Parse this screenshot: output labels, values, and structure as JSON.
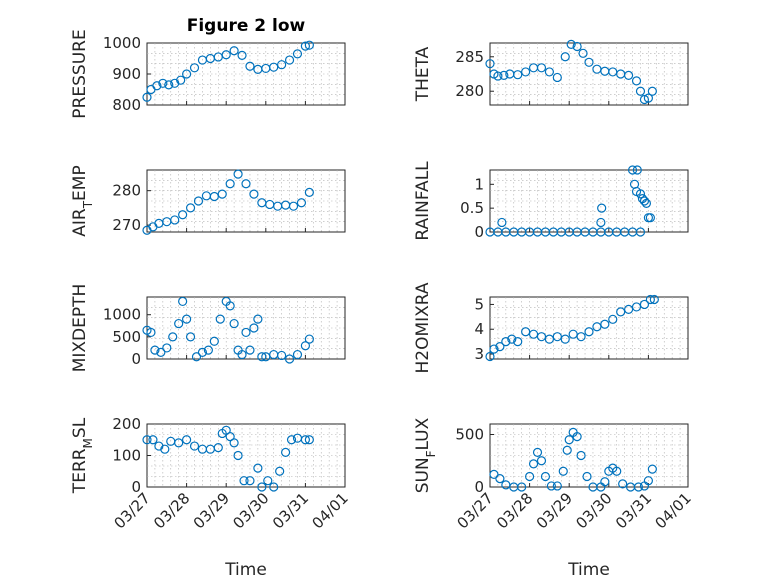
{
  "colors": {
    "marker": "#0072bd",
    "axis": "#262626",
    "grid": "#b0b0b0"
  },
  "chart_data": [
    {
      "type": "scatter",
      "ylabel": "PRESSURE",
      "title": "Figure 2 low",
      "ylim": [
        800,
        1000
      ],
      "yticks": [
        "800",
        "900",
        "1000"
      ],
      "ytick_values": [
        800,
        900,
        1000
      ],
      "xlim": [
        0,
        5
      ],
      "grid": true,
      "series": [
        {
          "x": [
            0.0,
            0.1,
            0.25,
            0.4,
            0.55,
            0.7,
            0.85,
            1.0,
            1.2,
            1.4,
            1.6,
            1.8,
            2.0,
            2.2,
            2.4,
            2.6,
            2.8,
            3.0,
            3.2,
            3.4,
            3.6,
            3.8,
            4.0,
            4.1
          ],
          "y": [
            825,
            850,
            862,
            870,
            865,
            870,
            880,
            900,
            920,
            945,
            950,
            955,
            962,
            975,
            960,
            925,
            915,
            918,
            922,
            930,
            945,
            965,
            990,
            993
          ]
        }
      ]
    },
    {
      "type": "scatter",
      "ylabel": "THETA",
      "title": "",
      "ylim": [
        278,
        287
      ],
      "yticks": [
        "280",
        "285"
      ],
      "ytick_values": [
        280,
        285
      ],
      "xlim": [
        0,
        5
      ],
      "grid": true,
      "series": [
        {
          "x": [
            0.0,
            0.1,
            0.2,
            0.35,
            0.5,
            0.7,
            0.9,
            1.1,
            1.3,
            1.5,
            1.7,
            1.9,
            2.05,
            2.2,
            2.35,
            2.5,
            2.7,
            2.9,
            3.1,
            3.3,
            3.5,
            3.7,
            3.8,
            3.9,
            4.0,
            4.1
          ],
          "y": [
            284,
            282.5,
            282.2,
            282.3,
            282.5,
            282.4,
            282.8,
            283.4,
            283.4,
            282.8,
            282.0,
            285.0,
            286.8,
            286.5,
            285.5,
            284.2,
            283.2,
            282.9,
            282.8,
            282.5,
            282.3,
            281.5,
            280.0,
            278.8,
            279.0,
            280.0
          ]
        }
      ]
    },
    {
      "type": "scatter",
      "ylabel": "AIR_TEMP",
      "ylabel_sub": "T",
      "title": "",
      "ylim": [
        268,
        286
      ],
      "yticks": [
        "270",
        "280"
      ],
      "ytick_values": [
        270,
        280
      ],
      "xlim": [
        0,
        5
      ],
      "grid": true,
      "series": [
        {
          "x": [
            0.0,
            0.15,
            0.3,
            0.5,
            0.7,
            0.9,
            1.1,
            1.3,
            1.5,
            1.7,
            1.9,
            2.1,
            2.3,
            2.5,
            2.7,
            2.9,
            3.1,
            3.3,
            3.5,
            3.7,
            3.9,
            4.1
          ],
          "y": [
            268.5,
            269.5,
            270.5,
            271,
            271.5,
            273,
            275,
            277,
            278.5,
            278.3,
            279,
            282,
            284.8,
            282,
            279,
            276.5,
            276,
            275.5,
            275.8,
            275.5,
            276.5,
            279.5
          ]
        }
      ]
    },
    {
      "type": "scatter",
      "ylabel": "RAINFALL",
      "title": "",
      "ylim": [
        0,
        1.3
      ],
      "yticks": [
        "0",
        "0.5",
        "1"
      ],
      "ytick_values": [
        0,
        0.5,
        1
      ],
      "xlim": [
        0,
        5
      ],
      "grid": true,
      "series": [
        {
          "x": [
            0.0,
            0.2,
            0.4,
            0.6,
            0.8,
            1.0,
            1.2,
            1.4,
            1.6,
            1.8,
            2.0,
            2.2,
            2.4,
            2.6,
            2.8,
            3.0,
            3.2,
            3.4,
            3.6,
            3.8,
            0.3,
            2.8,
            2.82,
            3.6,
            3.65,
            3.7,
            3.72,
            3.8,
            3.85,
            3.9,
            3.95,
            4.0,
            4.05
          ],
          "y": [
            0,
            0,
            0,
            0,
            0,
            0,
            0,
            0,
            0,
            0,
            0,
            0,
            0,
            0,
            0,
            0,
            0,
            0,
            0,
            0,
            0.2,
            0.2,
            0.5,
            1.3,
            1.0,
            0.85,
            1.3,
            0.8,
            0.7,
            0.65,
            0.6,
            0.3,
            0.3
          ]
        }
      ]
    },
    {
      "type": "scatter",
      "ylabel": "MIXDEPTH",
      "title": "",
      "ylim": [
        0,
        1400
      ],
      "yticks": [
        "0",
        "500",
        "1000"
      ],
      "ytick_values": [
        0,
        500,
        1000
      ],
      "xlim": [
        0,
        5
      ],
      "grid": true,
      "series": [
        {
          "x": [
            0.0,
            0.1,
            0.2,
            0.35,
            0.5,
            0.65,
            0.8,
            0.9,
            1.0,
            1.1,
            1.25,
            1.4,
            1.55,
            1.7,
            1.85,
            2.0,
            2.1,
            2.2,
            2.3,
            2.4,
            2.5,
            2.6,
            2.7,
            2.8,
            2.9,
            3.0,
            3.2,
            3.4,
            3.6,
            3.8,
            4.0,
            4.1
          ],
          "y": [
            650,
            600,
            200,
            150,
            250,
            500,
            800,
            1300,
            900,
            500,
            50,
            150,
            200,
            400,
            900,
            1300,
            1200,
            800,
            200,
            100,
            600,
            200,
            700,
            900,
            50,
            50,
            100,
            80,
            0,
            100,
            300,
            450
          ]
        }
      ]
    },
    {
      "type": "scatter",
      "ylabel": "H2OMIXRA",
      "title": "",
      "ylim": [
        2.8,
        5.3
      ],
      "yticks": [
        "3",
        "4",
        "5"
      ],
      "ytick_values": [
        3,
        4,
        5
      ],
      "xlim": [
        0,
        5
      ],
      "grid": true,
      "series": [
        {
          "x": [
            0.0,
            0.1,
            0.25,
            0.4,
            0.55,
            0.7,
            0.9,
            1.1,
            1.3,
            1.5,
            1.7,
            1.9,
            2.1,
            2.3,
            2.5,
            2.7,
            2.9,
            3.1,
            3.3,
            3.5,
            3.7,
            3.9,
            4.05,
            4.15
          ],
          "y": [
            2.9,
            3.2,
            3.3,
            3.5,
            3.6,
            3.5,
            3.9,
            3.8,
            3.7,
            3.6,
            3.7,
            3.6,
            3.8,
            3.7,
            3.9,
            4.1,
            4.2,
            4.4,
            4.7,
            4.8,
            4.9,
            5.0,
            5.2,
            5.2
          ]
        }
      ]
    },
    {
      "type": "scatter",
      "ylabel": "TERR_MSL",
      "ylabel_sub": "M",
      "title": "",
      "ylim": [
        0,
        200
      ],
      "yticks": [
        "0",
        "100",
        "200"
      ],
      "ytick_values": [
        0,
        100,
        200
      ],
      "xlim": [
        0,
        5
      ],
      "grid": true,
      "series": [
        {
          "x": [
            0.0,
            0.15,
            0.3,
            0.45,
            0.6,
            0.8,
            1.0,
            1.2,
            1.4,
            1.6,
            1.8,
            1.9,
            2.0,
            2.1,
            2.2,
            2.3,
            2.45,
            2.6,
            2.8,
            2.9,
            3.05,
            3.2,
            3.35,
            3.5,
            3.65,
            3.8,
            4.0,
            4.1
          ],
          "y": [
            150,
            150,
            130,
            120,
            145,
            140,
            150,
            130,
            120,
            120,
            125,
            170,
            180,
            160,
            140,
            100,
            20,
            20,
            60,
            0,
            20,
            0,
            50,
            110,
            150,
            155,
            150,
            150
          ]
        }
      ]
    },
    {
      "type": "scatter",
      "ylabel": "SUN_FLUX",
      "ylabel_sub": "F",
      "title": "",
      "ylim": [
        0,
        600
      ],
      "yticks": [
        "0",
        "500"
      ],
      "ytick_values": [
        0,
        500
      ],
      "xlim": [
        0,
        5
      ],
      "xticks": [
        "03/27",
        "03/28",
        "03/29",
        "03/30",
        "03/31",
        "04/01"
      ],
      "xtick_values": [
        0,
        1,
        2,
        3,
        4,
        5
      ],
      "xlabel": "Time",
      "grid": true,
      "series": [
        {
          "x": [
            0.1,
            0.25,
            0.4,
            0.6,
            0.8,
            1.0,
            1.1,
            1.2,
            1.3,
            1.4,
            1.55,
            1.7,
            1.85,
            1.95,
            2.0,
            2.1,
            2.2,
            2.3,
            2.45,
            2.6,
            2.8,
            2.9,
            3.0,
            3.1,
            3.2,
            3.35,
            3.55,
            3.75,
            3.9,
            4.0,
            4.1
          ],
          "y": [
            120,
            80,
            20,
            0,
            0,
            100,
            220,
            330,
            250,
            100,
            10,
            10,
            150,
            350,
            450,
            520,
            480,
            300,
            100,
            0,
            0,
            50,
            150,
            180,
            150,
            30,
            0,
            0,
            10,
            60,
            170
          ]
        }
      ]
    }
  ]
}
